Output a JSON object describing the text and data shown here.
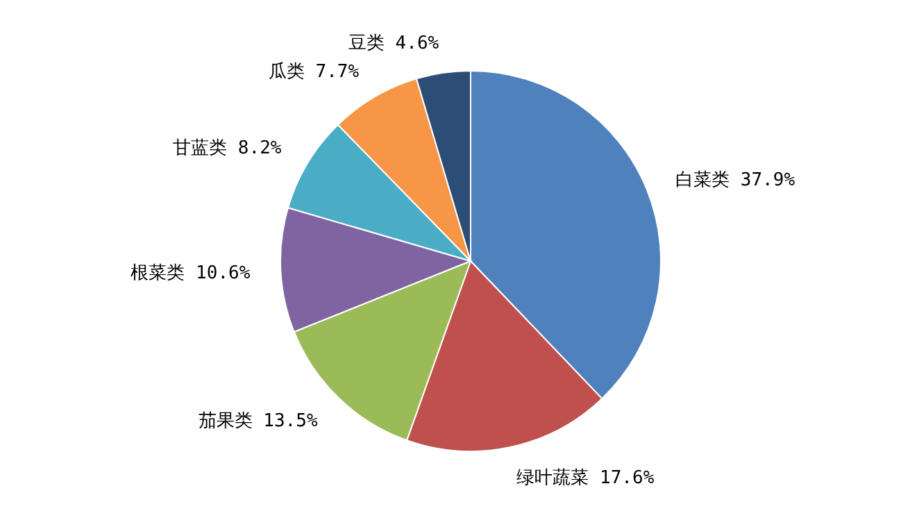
{
  "chart_data": {
    "type": "pie",
    "categories": [
      "白菜类",
      "绿叶蔬菜",
      "茄果类",
      "根菜类",
      "甘蓝类",
      "瓜类",
      "豆类"
    ],
    "values": [
      37.9,
      17.6,
      13.5,
      10.6,
      8.2,
      7.7,
      4.6
    ],
    "value_labels": [
      "37.9%",
      "17.6%",
      "13.5%",
      "10.6%",
      "8.2%",
      "7.7%",
      "4.6%"
    ],
    "colors": [
      "#4f81bd",
      "#c0504d",
      "#9bbb59",
      "#8064a2",
      "#4bacc6",
      "#f79646",
      "#2c4d75"
    ],
    "legend": false
  }
}
